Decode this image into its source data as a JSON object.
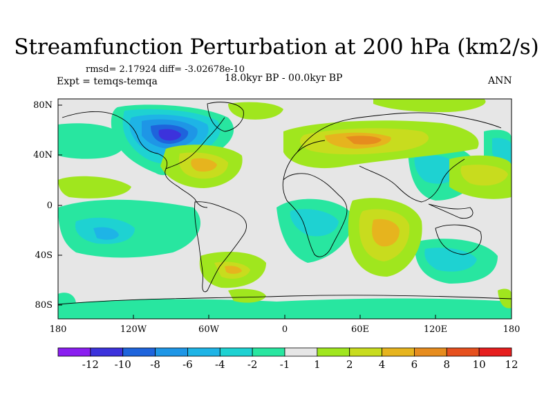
{
  "title": "Streamfunction Perturbation at 200 hPa (km2/s)",
  "stats_line": "rmsd= 2.17924 diff= -3.02678e-10",
  "experiment": "Expt = temqs-temqa",
  "period": "18.0kyr BP - 00.0kyr BP",
  "season": "ANN",
  "lat_labels": [
    "80N",
    "40N",
    "0",
    "40S",
    "80S"
  ],
  "lon_labels": [
    "180",
    "120W",
    "60W",
    "0",
    "60E",
    "120E",
    "180"
  ],
  "colorbar": {
    "labels": [
      "-12",
      "-10",
      "-8",
      "-6",
      "-4",
      "-2",
      "-1",
      "1",
      "2",
      "4",
      "6",
      "8",
      "10",
      "12"
    ],
    "colors": [
      "#8a1ef0",
      "#3c32dc",
      "#1e64dc",
      "#1e96e6",
      "#1eb4e6",
      "#1ed2d2",
      "#28e6a0",
      "#e6e6e6",
      "#a0e61e",
      "#c8dc1e",
      "#e6b41e",
      "#e68c1e",
      "#e6501e",
      "#e61e1e"
    ]
  }
}
